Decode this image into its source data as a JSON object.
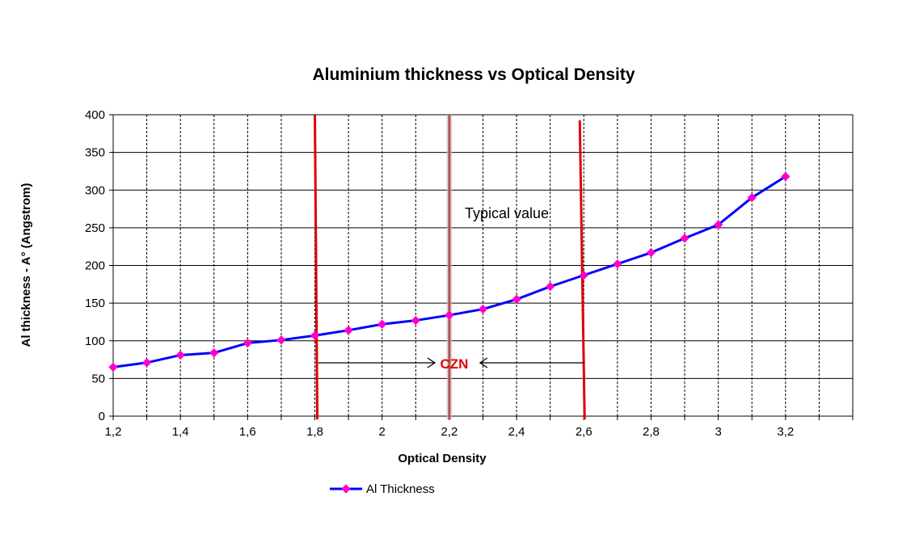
{
  "chart_data": {
    "type": "line",
    "title": "Aluminium thickness vs Optical Density",
    "xlabel": "Optical Density",
    "ylabel": "Al thickness - A° (Angstrom)",
    "xlim": [
      1.2,
      3.4
    ],
    "ylim": [
      0,
      400
    ],
    "x_ticks": [
      "1,2",
      "1,4",
      "1,6",
      "1,8",
      "2",
      "2,2",
      "2,4",
      "2,6",
      "2,8",
      "3",
      "3,2"
    ],
    "x_tick_values": [
      1.2,
      1.4,
      1.6,
      1.8,
      2.0,
      2.2,
      2.4,
      2.6,
      2.8,
      3.0,
      3.2
    ],
    "y_ticks": [
      "0",
      "50",
      "100",
      "150",
      "200",
      "250",
      "300",
      "350",
      "400"
    ],
    "y_tick_values": [
      0,
      50,
      100,
      150,
      200,
      250,
      300,
      350,
      400
    ],
    "grid": true,
    "grid_style": "dashed vertical every 0.1, solid horizontal every 50",
    "legend_position": "bottom-left",
    "series": [
      {
        "name": "Al  Thickness",
        "line_color": "#0000ff",
        "marker_color": "#ff00cc",
        "x": [
          1.2,
          1.3,
          1.4,
          1.5,
          1.6,
          1.7,
          1.8,
          1.9,
          2.0,
          2.1,
          2.2,
          2.3,
          2.4,
          2.5,
          2.6,
          2.7,
          2.8,
          2.9,
          3.0,
          3.1,
          3.2
        ],
        "y": [
          65,
          71,
          81,
          84,
          97,
          101,
          107,
          114,
          122,
          127,
          134,
          142,
          155,
          172,
          187,
          202,
          217,
          236,
          254,
          290,
          318
        ]
      }
    ],
    "reference_lines": [
      {
        "x": 1.8,
        "color": "#e00000"
      },
      {
        "x": 2.2,
        "color": "#b05050"
      },
      {
        "x": 2.6,
        "color": "#e00000"
      }
    ],
    "annotations": {
      "typical_value": "Typical value",
      "czn_label": "CZN",
      "czn_color": "#e00000"
    }
  }
}
